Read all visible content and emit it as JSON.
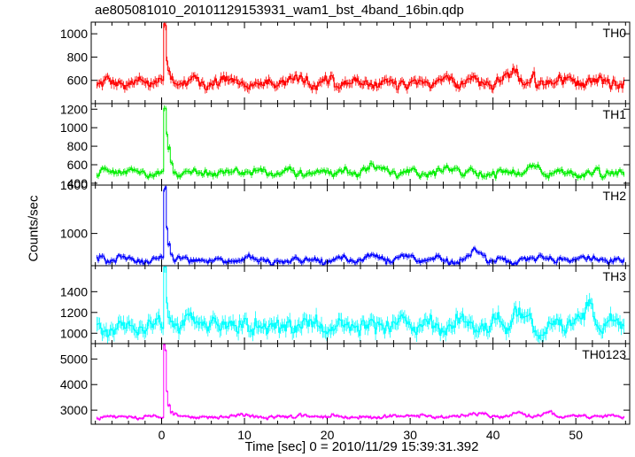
{
  "chart_data": {
    "type": "line",
    "title": "ae805081010_20101129153931_wam1_bst_4band_16bin.qdp",
    "xlabel": "Time [sec] 0 = 2010/11/29 15:39:31.392",
    "ylabel": "Counts/sec",
    "xlim": [
      -8.5,
      56.5
    ],
    "xticks": [
      0,
      10,
      20,
      30,
      40,
      50
    ],
    "x_start": -7.8,
    "x_end": 55.8,
    "n_points": 400,
    "burst_time": 0.4,
    "panels": [
      {
        "name": "TH0",
        "color": "#ff0000",
        "ylim": [
          400,
          1100
        ],
        "yticks": [
          600,
          800,
          1000
        ],
        "baseline": 580,
        "noise": 45,
        "err": 35,
        "burst": [
          0.2,
          1100,
          0.3,
          800,
          0.6,
          700,
          1.0,
          640
        ],
        "bumps": [
          [
            42.5,
            120
          ],
          [
            48,
            60
          ],
          [
            16.5,
            40
          ]
        ]
      },
      {
        "name": "TH1",
        "color": "#00ee00",
        "ylim": [
          380,
          1260
        ],
        "yticks": [
          400,
          600,
          800,
          1000,
          1200
        ],
        "baseline": 515,
        "noise": 40,
        "err": 30,
        "burst": [
          0.2,
          1250,
          0.3,
          950,
          0.6,
          800,
          1.0,
          650
        ],
        "bumps": [
          [
            25.5,
            80
          ],
          [
            45,
            60
          ],
          [
            35,
            50
          ]
        ]
      },
      {
        "name": "TH2",
        "color": "#0000ff",
        "ylim": [
          600,
          1600
        ],
        "yticks": [
          1000,
          1600
        ],
        "baseline": 670,
        "noise": 40,
        "err": 30,
        "burst": [
          0.2,
          1600,
          0.3,
          1100,
          0.6,
          900,
          1.0,
          750
        ],
        "bumps": [
          [
            38,
            130
          ],
          [
            46,
            90
          ],
          [
            25,
            60
          ]
        ]
      },
      {
        "name": "TH3",
        "color": "#00ffff",
        "ylim": [
          900,
          1650
        ],
        "yticks": [
          1000,
          1200,
          1400
        ],
        "baseline": 1075,
        "noise": 80,
        "err": 60,
        "burst": [
          0.2,
          1650,
          0.3,
          1300,
          0.6,
          1200,
          1.0,
          1150
        ],
        "bumps": [
          [
            51.5,
            200
          ],
          [
            43,
            120
          ],
          [
            3.5,
            100
          ]
        ]
      },
      {
        "name": "TH0123",
        "color": "#ff00ff",
        "ylim": [
          2450,
          5600
        ],
        "yticks": [
          3000,
          4000,
          5000
        ],
        "baseline": 2750,
        "noise": 70,
        "err": 50,
        "burst": [
          0.2,
          5600,
          0.3,
          3900,
          0.6,
          3300,
          1.0,
          3000
        ],
        "bumps": [
          [
            43,
            250
          ],
          [
            38,
            180
          ],
          [
            47,
            150
          ]
        ]
      }
    ],
    "grid": false,
    "legend": "none"
  }
}
